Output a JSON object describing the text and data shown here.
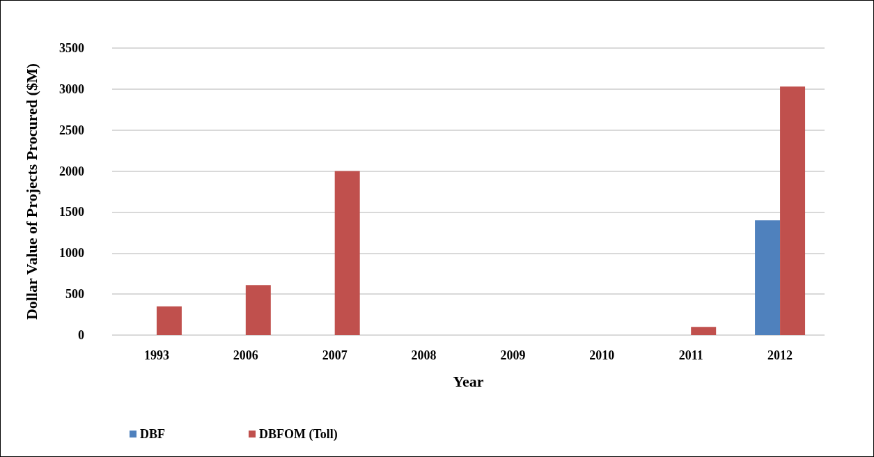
{
  "chart_data": {
    "type": "bar",
    "xlabel": "Year",
    "ylabel": "Dollar Value of Projects Procured ($M)",
    "categories": [
      "1993",
      "2006",
      "2007",
      "2008",
      "2009",
      "2010",
      "2011",
      "2012"
    ],
    "series": [
      {
        "name": "DBF",
        "color": "#4f81bd",
        "values": [
          null,
          null,
          null,
          null,
          null,
          null,
          null,
          1400
        ]
      },
      {
        "name": "DBFOM (Toll)",
        "color": "#c0504d",
        "values": [
          350,
          610,
          2000,
          null,
          null,
          null,
          100,
          3030
        ]
      }
    ],
    "ylim": [
      0,
      3500
    ],
    "yticks": [
      0,
      500,
      1000,
      1500,
      2000,
      2500,
      3000,
      3500
    ],
    "grid": "y",
    "legend": "bottom left"
  }
}
